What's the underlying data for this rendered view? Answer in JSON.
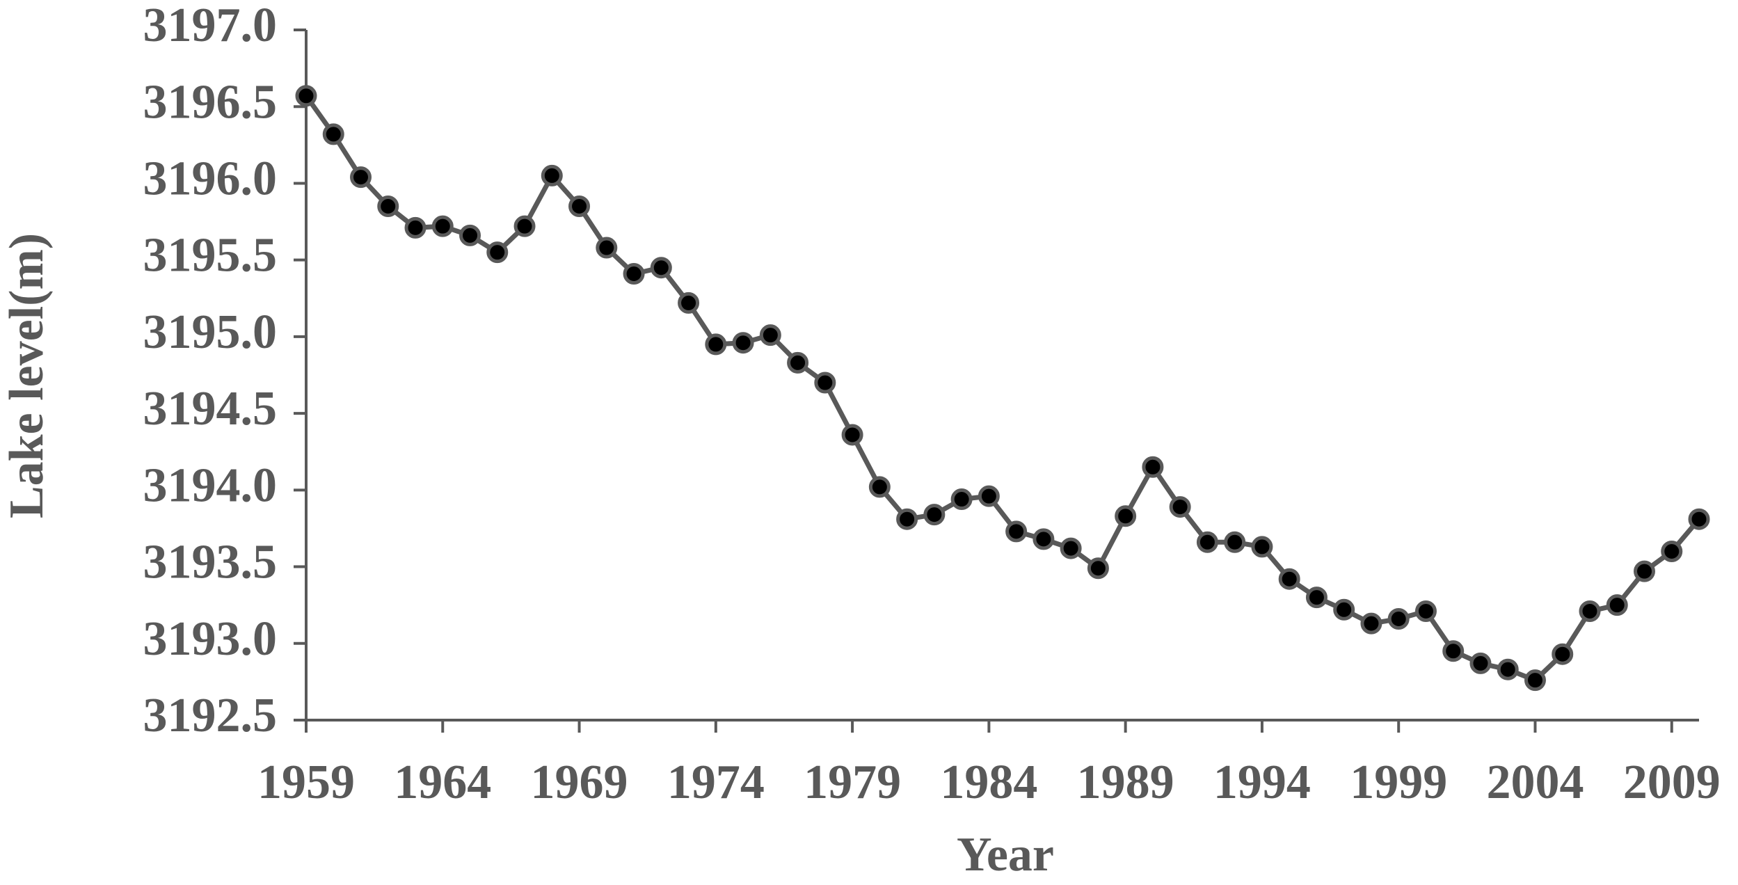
{
  "chart_data": {
    "type": "line",
    "xlabel": "Year",
    "ylabel": "Lake level(m)",
    "x": [
      1959,
      1960,
      1961,
      1962,
      1963,
      1964,
      1965,
      1966,
      1967,
      1968,
      1969,
      1970,
      1971,
      1972,
      1973,
      1974,
      1975,
      1976,
      1977,
      1978,
      1979,
      1980,
      1981,
      1982,
      1983,
      1984,
      1985,
      1986,
      1987,
      1988,
      1989,
      1990,
      1991,
      1992,
      1993,
      1994,
      1995,
      1996,
      1997,
      1998,
      1999,
      2000,
      2001,
      2002,
      2003,
      2004,
      2005,
      2006,
      2007,
      2008,
      2009,
      2010
    ],
    "values": [
      3196.57,
      3196.32,
      3196.04,
      3195.85,
      3195.71,
      3195.72,
      3195.66,
      3195.55,
      3195.72,
      3196.05,
      3195.85,
      3195.58,
      3195.41,
      3195.45,
      3195.22,
      3194.95,
      3194.96,
      3195.01,
      3194.83,
      3194.7,
      3194.36,
      3194.02,
      3193.81,
      3193.84,
      3193.94,
      3193.96,
      3193.73,
      3193.68,
      3193.62,
      3193.49,
      3193.83,
      3194.15,
      3193.89,
      3193.66,
      3193.66,
      3193.63,
      3193.42,
      3193.3,
      3193.22,
      3193.13,
      3193.16,
      3193.21,
      3192.95,
      3192.87,
      3192.83,
      3192.76,
      3192.93,
      3193.21,
      3193.25,
      3193.47,
      3193.6,
      3193.81
    ],
    "color": "#595959",
    "marker_color": "#000000",
    "xlim": [
      1959,
      2010
    ],
    "xticks": [
      1959,
      1964,
      1969,
      1974,
      1979,
      1984,
      1989,
      1994,
      1999,
      2004,
      2009
    ],
    "ylim": [
      3192.5,
      3197.0
    ],
    "yticks": [
      {
        "value": 3192.5,
        "label": "3192.5"
      },
      {
        "value": 3193.0,
        "label": "3193.0"
      },
      {
        "value": 3193.5,
        "label": "3193.5"
      },
      {
        "value": 3194.0,
        "label": "3194.0"
      },
      {
        "value": 3194.5,
        "label": "3194.5"
      },
      {
        "value": 3195.0,
        "label": "3195.0"
      },
      {
        "value": 3195.5,
        "label": "3195.5"
      },
      {
        "value": 3196.0,
        "label": "3196.0"
      },
      {
        "value": 3196.5,
        "label": "3196.5"
      },
      {
        "value": 3197.0,
        "label": "3197.0"
      }
    ],
    "grid": false
  }
}
